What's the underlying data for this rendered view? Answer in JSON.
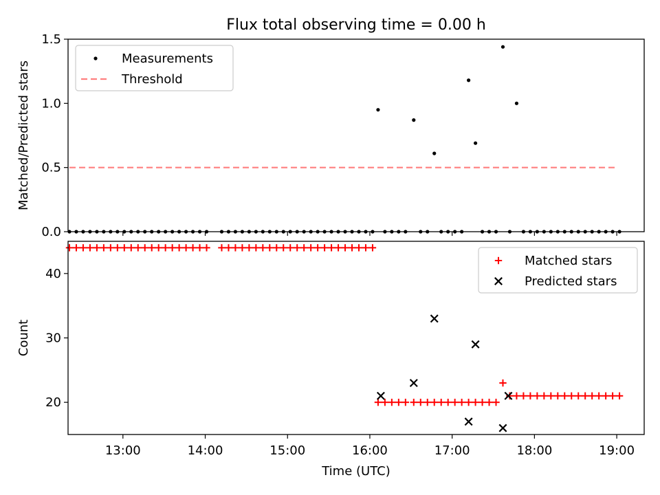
{
  "chart_data": [
    {
      "type": "scatter",
      "title": "Flux total observing time = 0.00 h",
      "xlabel": "",
      "ylabel": "Matched/Predicted stars",
      "ylim": [
        0,
        1.5
      ],
      "yticks": [
        "0.0",
        "0.5",
        "1.0",
        "1.5"
      ],
      "xlim": [
        "12:20",
        "19:20"
      ],
      "xticks": [
        "13:00",
        "14:00",
        "15:00",
        "16:00",
        "17:00",
        "18:00",
        "19:00"
      ],
      "legend_position": "top-left",
      "series": [
        {
          "name": "Measurements",
          "kind": "scatter-dot",
          "color": "#000000",
          "points": [
            [
              "12:21",
              0
            ],
            [
              "12:26",
              0
            ],
            [
              "12:31",
              0
            ],
            [
              "12:36",
              0
            ],
            [
              "12:41",
              0
            ],
            [
              "12:46",
              0
            ],
            [
              "12:51",
              0
            ],
            [
              "12:56",
              0
            ],
            [
              "13:01",
              0
            ],
            [
              "13:06",
              0
            ],
            [
              "13:11",
              0
            ],
            [
              "13:16",
              0
            ],
            [
              "13:21",
              0
            ],
            [
              "13:26",
              0
            ],
            [
              "13:31",
              0
            ],
            [
              "13:36",
              0
            ],
            [
              "13:41",
              0
            ],
            [
              "13:46",
              0
            ],
            [
              "13:51",
              0
            ],
            [
              "13:56",
              0
            ],
            [
              "14:01",
              0
            ],
            [
              "14:12",
              0
            ],
            [
              "14:17",
              0
            ],
            [
              "14:22",
              0
            ],
            [
              "14:27",
              0
            ],
            [
              "14:32",
              0
            ],
            [
              "14:37",
              0
            ],
            [
              "14:42",
              0
            ],
            [
              "14:47",
              0
            ],
            [
              "14:52",
              0
            ],
            [
              "14:57",
              0
            ],
            [
              "15:02",
              0
            ],
            [
              "15:07",
              0
            ],
            [
              "15:12",
              0
            ],
            [
              "15:17",
              0
            ],
            [
              "15:22",
              0
            ],
            [
              "15:27",
              0
            ],
            [
              "15:32",
              0
            ],
            [
              "15:37",
              0
            ],
            [
              "15:42",
              0
            ],
            [
              "15:47",
              0
            ],
            [
              "15:52",
              0
            ],
            [
              "15:57",
              0
            ],
            [
              "16:02",
              0
            ],
            [
              "16:06",
              0.95
            ],
            [
              "16:11",
              0
            ],
            [
              "16:16",
              0
            ],
            [
              "16:21",
              0
            ],
            [
              "16:26",
              0
            ],
            [
              "16:32",
              0.87
            ],
            [
              "16:37",
              0
            ],
            [
              "16:42",
              0
            ],
            [
              "16:47",
              0.61
            ],
            [
              "16:52",
              0
            ],
            [
              "16:57",
              0
            ],
            [
              "17:02",
              0
            ],
            [
              "17:07",
              0
            ],
            [
              "17:12",
              1.18
            ],
            [
              "17:17",
              0.69
            ],
            [
              "17:22",
              0
            ],
            [
              "17:27",
              0
            ],
            [
              "17:32",
              0
            ],
            [
              "17:37",
              1.44
            ],
            [
              "17:42",
              0
            ],
            [
              "17:47",
              1.0
            ],
            [
              "17:52",
              0
            ],
            [
              "17:57",
              0
            ],
            [
              "18:02",
              0
            ],
            [
              "18:07",
              0
            ],
            [
              "18:12",
              0
            ],
            [
              "18:17",
              0
            ],
            [
              "18:22",
              0
            ],
            [
              "18:27",
              0
            ],
            [
              "18:32",
              0
            ],
            [
              "18:37",
              0
            ],
            [
              "18:42",
              0
            ],
            [
              "18:47",
              0
            ],
            [
              "18:52",
              0
            ],
            [
              "18:57",
              0
            ],
            [
              "19:02",
              0
            ]
          ]
        },
        {
          "name": "Threshold",
          "kind": "dashed-line",
          "color": "#ff7f7f",
          "points": [
            [
              "12:21",
              0.5
            ],
            [
              "19:00",
              0.5
            ]
          ]
        }
      ]
    },
    {
      "type": "scatter",
      "xlabel": "Time (UTC)",
      "ylabel": "Count",
      "ylim": [
        15,
        45
      ],
      "yticks": [
        "20",
        "30",
        "40"
      ],
      "xlim": [
        "12:20",
        "19:20"
      ],
      "xticks": [
        "13:00",
        "14:00",
        "15:00",
        "16:00",
        "17:00",
        "18:00",
        "19:00"
      ],
      "legend_position": "top-right",
      "series": [
        {
          "name": "Matched stars",
          "kind": "plus",
          "color": "#ff0000",
          "points": [
            [
              "12:21",
              44
            ],
            [
              "12:26",
              44
            ],
            [
              "12:31",
              44
            ],
            [
              "12:36",
              44
            ],
            [
              "12:41",
              44
            ],
            [
              "12:46",
              44
            ],
            [
              "12:51",
              44
            ],
            [
              "12:56",
              44
            ],
            [
              "13:01",
              44
            ],
            [
              "13:06",
              44
            ],
            [
              "13:11",
              44
            ],
            [
              "13:16",
              44
            ],
            [
              "13:21",
              44
            ],
            [
              "13:26",
              44
            ],
            [
              "13:31",
              44
            ],
            [
              "13:36",
              44
            ],
            [
              "13:41",
              44
            ],
            [
              "13:46",
              44
            ],
            [
              "13:51",
              44
            ],
            [
              "13:56",
              44
            ],
            [
              "14:01",
              44
            ],
            [
              "14:12",
              44
            ],
            [
              "14:17",
              44
            ],
            [
              "14:22",
              44
            ],
            [
              "14:27",
              44
            ],
            [
              "14:32",
              44
            ],
            [
              "14:37",
              44
            ],
            [
              "14:42",
              44
            ],
            [
              "14:47",
              44
            ],
            [
              "14:52",
              44
            ],
            [
              "14:57",
              44
            ],
            [
              "15:02",
              44
            ],
            [
              "15:07",
              44
            ],
            [
              "15:12",
              44
            ],
            [
              "15:17",
              44
            ],
            [
              "15:22",
              44
            ],
            [
              "15:27",
              44
            ],
            [
              "15:32",
              44
            ],
            [
              "15:37",
              44
            ],
            [
              "15:42",
              44
            ],
            [
              "15:47",
              44
            ],
            [
              "15:52",
              44
            ],
            [
              "15:57",
              44
            ],
            [
              "16:02",
              44
            ],
            [
              "16:06",
              20
            ],
            [
              "16:11",
              20
            ],
            [
              "16:16",
              20
            ],
            [
              "16:21",
              20
            ],
            [
              "16:26",
              20
            ],
            [
              "16:32",
              20
            ],
            [
              "16:37",
              20
            ],
            [
              "16:42",
              20
            ],
            [
              "16:47",
              20
            ],
            [
              "16:52",
              20
            ],
            [
              "16:57",
              20
            ],
            [
              "17:02",
              20
            ],
            [
              "17:07",
              20
            ],
            [
              "17:12",
              20
            ],
            [
              "17:17",
              20
            ],
            [
              "17:22",
              20
            ],
            [
              "17:27",
              20
            ],
            [
              "17:32",
              20
            ],
            [
              "17:37",
              23
            ],
            [
              "17:42",
              21
            ],
            [
              "17:47",
              21
            ],
            [
              "17:52",
              21
            ],
            [
              "17:57",
              21
            ],
            [
              "18:02",
              21
            ],
            [
              "18:07",
              21
            ],
            [
              "18:12",
              21
            ],
            [
              "18:17",
              21
            ],
            [
              "18:22",
              21
            ],
            [
              "18:27",
              21
            ],
            [
              "18:32",
              21
            ],
            [
              "18:37",
              21
            ],
            [
              "18:42",
              21
            ],
            [
              "18:47",
              21
            ],
            [
              "18:52",
              21
            ],
            [
              "18:57",
              21
            ],
            [
              "19:02",
              21
            ]
          ]
        },
        {
          "name": "Predicted stars",
          "kind": "x",
          "color": "#000000",
          "points": [
            [
              "16:08",
              21
            ],
            [
              "16:32",
              23
            ],
            [
              "16:47",
              33
            ],
            [
              "17:12",
              17
            ],
            [
              "17:17",
              29
            ],
            [
              "17:37",
              16
            ],
            [
              "17:41",
              21
            ]
          ]
        }
      ]
    }
  ]
}
